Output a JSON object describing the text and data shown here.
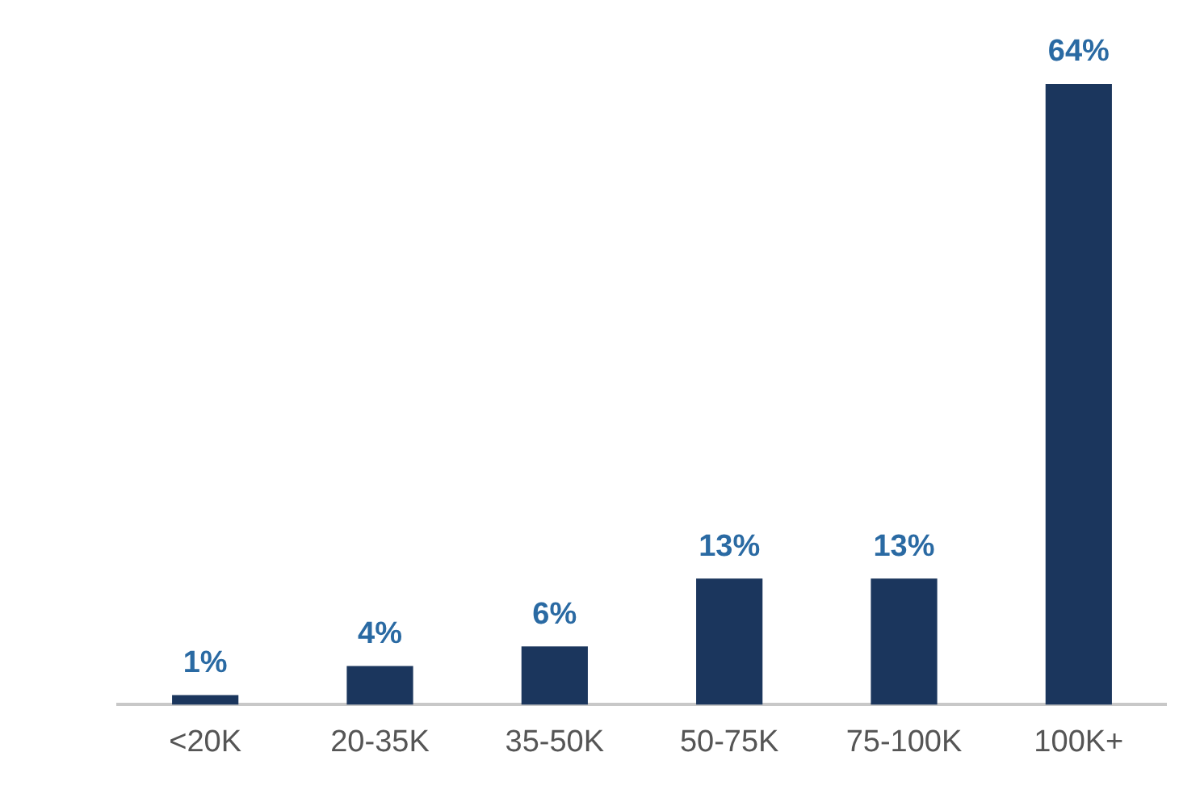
{
  "chart_data": {
    "type": "bar",
    "categories": [
      "<20K",
      "20-35K",
      "35-50K",
      "50-75K",
      "75-100K",
      "100K+"
    ],
    "values": [
      1,
      4,
      6,
      13,
      13,
      64
    ],
    "value_labels": [
      "1%",
      "4%",
      "6%",
      "13%",
      "13%",
      "64%"
    ],
    "color": "#1b365d",
    "grid": false,
    "legend": false
  }
}
